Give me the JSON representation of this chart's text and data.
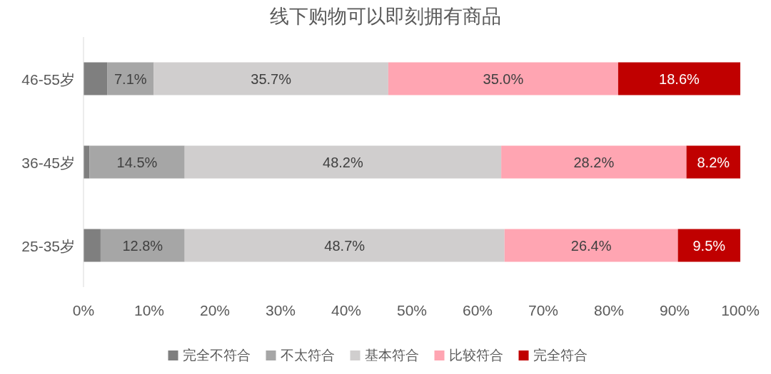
{
  "chart_data": {
    "type": "bar",
    "title": "线下购物可以即刻拥有商品",
    "orientation": "horizontal",
    "stacked": true,
    "categories": [
      "46-55岁",
      "36-45岁",
      "25-35岁"
    ],
    "series": [
      {
        "name": "完全不符合",
        "color": "#7f7f7f",
        "values": [
          3.6,
          0.9,
          2.6
        ],
        "value_labels": [
          null,
          null,
          null
        ]
      },
      {
        "name": "不太符合",
        "color": "#a6a6a6",
        "values": [
          7.1,
          14.5,
          12.8
        ],
        "value_labels": [
          "7.1%",
          "14.5%",
          "12.8%"
        ]
      },
      {
        "name": "基本符合",
        "color": "#d0cece",
        "values": [
          35.7,
          48.2,
          48.7
        ],
        "value_labels": [
          "35.7%",
          "48.2%",
          "48.7%"
        ]
      },
      {
        "name": "比较符合",
        "color": "#ffa5b2",
        "values": [
          35.0,
          28.2,
          26.4
        ],
        "value_labels": [
          "35.0%",
          "28.2%",
          "26.4%"
        ]
      },
      {
        "name": "完全符合",
        "color": "#c00000",
        "values": [
          18.6,
          8.2,
          9.5
        ],
        "value_labels": [
          "18.6%",
          "8.2%",
          "9.5%"
        ]
      }
    ],
    "xlim": [
      0,
      100
    ],
    "xticks": [
      {
        "value": 0,
        "label": "0%"
      },
      {
        "value": 10,
        "label": "10%"
      },
      {
        "value": 20,
        "label": "20%"
      },
      {
        "value": 30,
        "label": "30%"
      },
      {
        "value": 40,
        "label": "40%"
      },
      {
        "value": 50,
        "label": "50%"
      },
      {
        "value": 60,
        "label": "60%"
      },
      {
        "value": 70,
        "label": "70%"
      },
      {
        "value": 80,
        "label": "80%"
      },
      {
        "value": 90,
        "label": "90%"
      },
      {
        "value": 100,
        "label": "100%"
      }
    ],
    "legend": "bottom"
  }
}
